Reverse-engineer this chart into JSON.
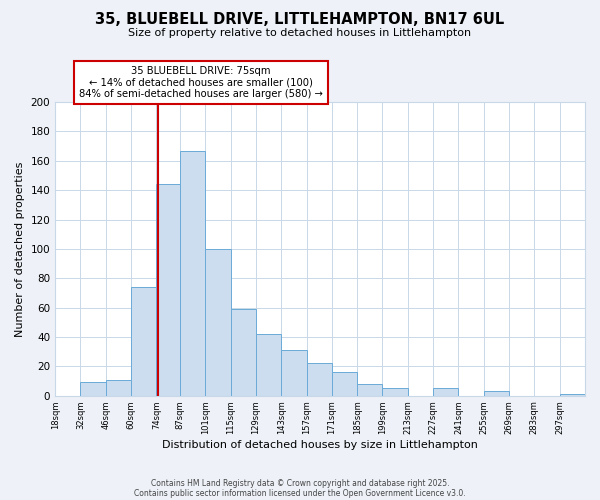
{
  "title": "35, BLUEBELL DRIVE, LITTLEHAMPTON, BN17 6UL",
  "subtitle": "Size of property relative to detached houses in Littlehampton",
  "xlabel": "Distribution of detached houses by size in Littlehampton",
  "ylabel": "Number of detached properties",
  "bin_labels": [
    "18sqm",
    "32sqm",
    "46sqm",
    "60sqm",
    "74sqm",
    "87sqm",
    "101sqm",
    "115sqm",
    "129sqm",
    "143sqm",
    "157sqm",
    "171sqm",
    "185sqm",
    "199sqm",
    "213sqm",
    "227sqm",
    "241sqm",
    "255sqm",
    "269sqm",
    "283sqm",
    "297sqm"
  ],
  "bin_edges": [
    18,
    32,
    46,
    60,
    74,
    87,
    101,
    115,
    129,
    143,
    157,
    171,
    185,
    199,
    213,
    227,
    241,
    255,
    269,
    283,
    297,
    311
  ],
  "bar_heights": [
    0,
    9,
    11,
    74,
    144,
    167,
    100,
    59,
    42,
    31,
    22,
    16,
    8,
    5,
    0,
    5,
    0,
    3,
    0,
    0,
    1
  ],
  "bar_color": "#ccddf0",
  "bar_edge_color": "#6baad8",
  "vline_x": 75,
  "vline_color": "#cc0000",
  "annotation_title": "35 BLUEBELL DRIVE: 75sqm",
  "annotation_line1": "← 14% of detached houses are smaller (100)",
  "annotation_line2": "84% of semi-detached houses are larger (580) →",
  "annotation_box_color": "#ffffff",
  "annotation_box_edge": "#cc0000",
  "ylim": [
    0,
    200
  ],
  "yticks": [
    0,
    20,
    40,
    60,
    80,
    100,
    120,
    140,
    160,
    180,
    200
  ],
  "footnote1": "Contains HM Land Registry data © Crown copyright and database right 2025.",
  "footnote2": "Contains public sector information licensed under the Open Government Licence v3.0.",
  "bg_color": "#eef2f8",
  "plot_bg_color": "#ffffff",
  "grid_color": "#c8d8e8"
}
